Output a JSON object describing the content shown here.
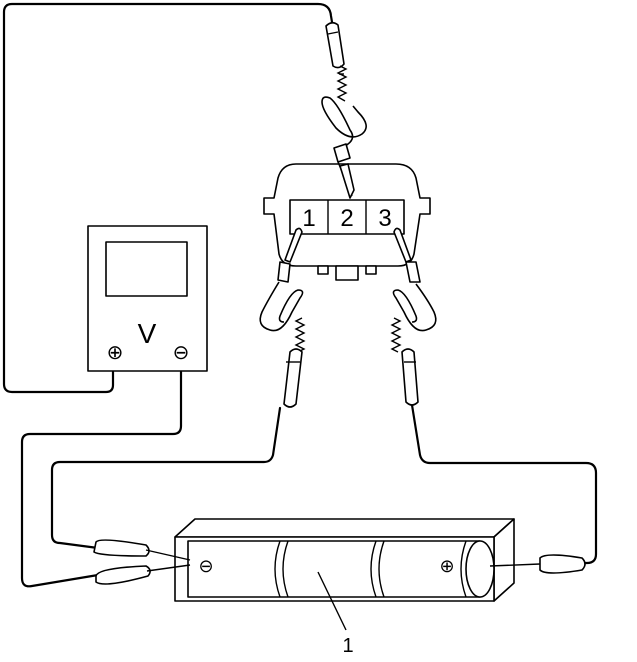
{
  "connector": {
    "pins": [
      "1",
      "2",
      "3"
    ]
  },
  "voltmeter": {
    "unit_label": "V",
    "positive_symbol": "⊕",
    "negative_symbol": "⊖"
  },
  "battery_pack": {
    "negative_symbol": "⊖",
    "positive_symbol": "⊕"
  },
  "callouts": [
    {
      "label": "1"
    }
  ]
}
